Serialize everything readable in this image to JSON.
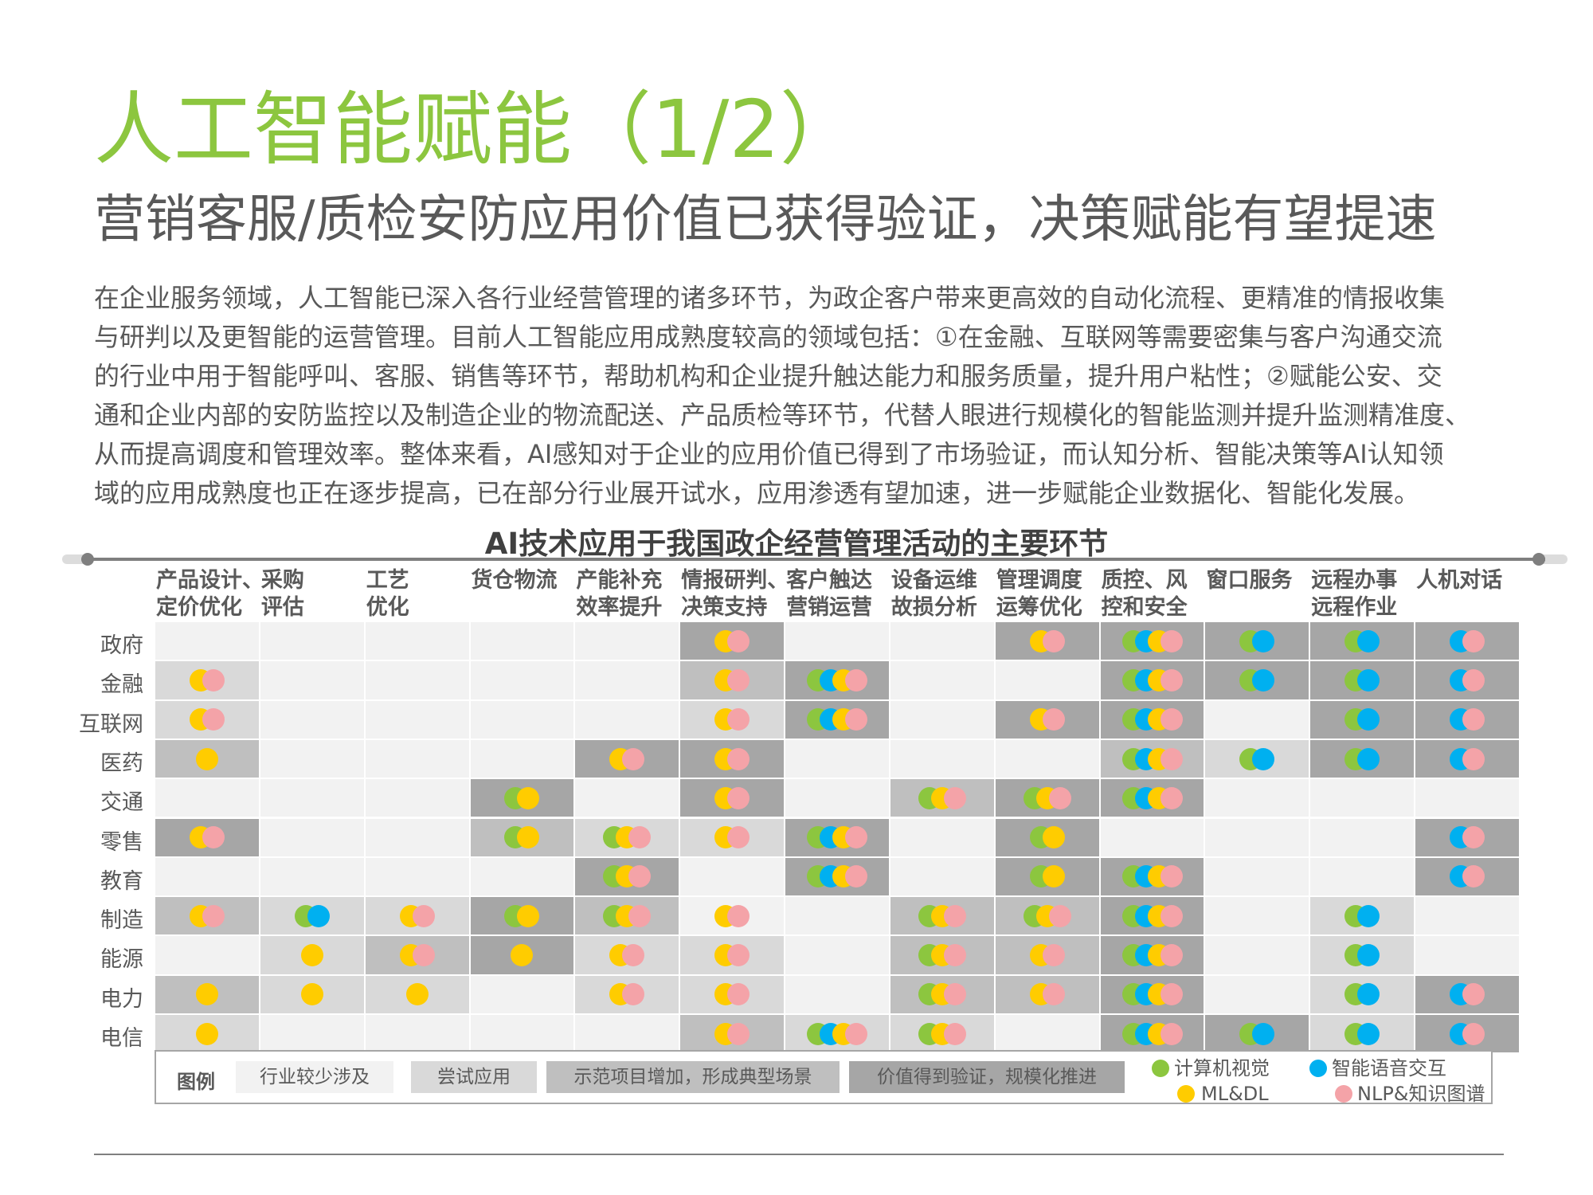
{
  "title": "人工智能赋能（1/2）",
  "subtitle": "营销客服/质检安防应用价值已获得验证，决策赋能有望提速",
  "body_lines": [
    "在企业服务领域，人工智能已深入各行业经营管理的诸多环节，为政企客户带来更高效的自动化流程、更精准的情报收集",
    "与研判以及更智能的运营管理。目前人工智能应用成熟度较高的领域包括：①在金融、互联网等需要密集与客户沟通交流",
    "的行业中用于智能呼叫、客服、销售等环节，帮助机构和企业提升触达能力和服务质量，提升用户粘性；②赋能公安、交",
    "通和企业内部的安防监控以及制造企业的物流配送、产品质检等环节，代替人眼进行规模化的智能监测并提升监测精准度、",
    "从而提高调度和管理效率。整体来看，AI感知对于企业的应用价值已得到了市场验证，而认知分析、智能决策等AI认知领",
    "域的应用成熟度也正在逐步提高，已在部分行业展开试水，应用渗透有望加速，进一步赋能企业数据化、智能化发展。"
  ],
  "chart_data": {
    "type": "table",
    "title": "AI技术应用于我国政企经营管理活动的主要环节",
    "columns": [
      [
        "产品设计、",
        "定价优化"
      ],
      [
        "采购",
        "评估"
      ],
      [
        "工艺",
        "优化"
      ],
      [
        "货仓物流"
      ],
      [
        "产能补充",
        "效率提升"
      ],
      [
        "情报研判、",
        "决策支持"
      ],
      [
        "客户触达",
        "营销运营"
      ],
      [
        "设备运维",
        "故损分析"
      ],
      [
        "管理调度",
        "运筹优化"
      ],
      [
        "质控、风",
        "控和安全"
      ],
      [
        "窗口服务"
      ],
      [
        "远程办事",
        "远程作业"
      ],
      [
        "人机对话"
      ]
    ],
    "rows": [
      "政府",
      "金融",
      "互联网",
      "医药",
      "交通",
      "零售",
      "教育",
      "制造",
      "能源",
      "电力",
      "电信"
    ],
    "level_colors": [
      "#f2f2f2",
      "#d9d9d9",
      "#bfbfbf",
      "#a6a6a6"
    ],
    "tech_colors": {
      "cv": "#8cc63f",
      "voice": "#00b0f0",
      "ml": "#ffcc00",
      "nlp": "#f4a3a8"
    },
    "cells": [
      [
        {
          "l": 0,
          "t": ""
        },
        {
          "l": 0,
          "t": ""
        },
        {
          "l": 0,
          "t": ""
        },
        {
          "l": 0,
          "t": ""
        },
        {
          "l": 0,
          "t": ""
        },
        {
          "l": 3,
          "t": "mn"
        },
        {
          "l": 0,
          "t": ""
        },
        {
          "l": 0,
          "t": ""
        },
        {
          "l": 3,
          "t": "mn"
        },
        {
          "l": 3,
          "t": "cvmn"
        },
        {
          "l": 3,
          "t": "cv"
        },
        {
          "l": 3,
          "t": "cv"
        },
        {
          "l": 3,
          "t": "vn"
        }
      ],
      [
        {
          "l": 1,
          "t": "mn"
        },
        {
          "l": 0,
          "t": ""
        },
        {
          "l": 0,
          "t": ""
        },
        {
          "l": 0,
          "t": ""
        },
        {
          "l": 0,
          "t": ""
        },
        {
          "l": 2,
          "t": "mn"
        },
        {
          "l": 3,
          "t": "cvmn"
        },
        {
          "l": 0,
          "t": ""
        },
        {
          "l": 0,
          "t": ""
        },
        {
          "l": 3,
          "t": "cvmn"
        },
        {
          "l": 3,
          "t": "cv"
        },
        {
          "l": 3,
          "t": "cv"
        },
        {
          "l": 3,
          "t": "vn"
        }
      ],
      [
        {
          "l": 1,
          "t": "mn"
        },
        {
          "l": 0,
          "t": ""
        },
        {
          "l": 0,
          "t": ""
        },
        {
          "l": 0,
          "t": ""
        },
        {
          "l": 0,
          "t": ""
        },
        {
          "l": 1,
          "t": "mn"
        },
        {
          "l": 3,
          "t": "cvmn"
        },
        {
          "l": 0,
          "t": ""
        },
        {
          "l": 3,
          "t": "mn"
        },
        {
          "l": 3,
          "t": "cvmn"
        },
        {
          "l": 0,
          "t": ""
        },
        {
          "l": 3,
          "t": "cv"
        },
        {
          "l": 3,
          "t": "vn"
        }
      ],
      [
        {
          "l": 2,
          "t": "m"
        },
        {
          "l": 0,
          "t": ""
        },
        {
          "l": 0,
          "t": ""
        },
        {
          "l": 0,
          "t": ""
        },
        {
          "l": 3,
          "t": "mn"
        },
        {
          "l": 3,
          "t": "mn"
        },
        {
          "l": 0,
          "t": ""
        },
        {
          "l": 0,
          "t": ""
        },
        {
          "l": 0,
          "t": ""
        },
        {
          "l": 2,
          "t": "cvmn"
        },
        {
          "l": 1,
          "t": "cv"
        },
        {
          "l": 3,
          "t": "cv"
        },
        {
          "l": 3,
          "t": "vn"
        }
      ],
      [
        {
          "l": 0,
          "t": ""
        },
        {
          "l": 0,
          "t": ""
        },
        {
          "l": 0,
          "t": ""
        },
        {
          "l": 3,
          "t": "cm"
        },
        {
          "l": 0,
          "t": ""
        },
        {
          "l": 3,
          "t": "mn"
        },
        {
          "l": 0,
          "t": ""
        },
        {
          "l": 2,
          "t": "cmn"
        },
        {
          "l": 3,
          "t": "cmn"
        },
        {
          "l": 3,
          "t": "cvmn"
        },
        {
          "l": 0,
          "t": ""
        },
        {
          "l": 0,
          "t": ""
        },
        {
          "l": 0,
          "t": ""
        }
      ],
      [
        {
          "l": 3,
          "t": "mn"
        },
        {
          "l": 0,
          "t": ""
        },
        {
          "l": 0,
          "t": ""
        },
        {
          "l": 2,
          "t": "cm"
        },
        {
          "l": 1,
          "t": "cmn"
        },
        {
          "l": 1,
          "t": "mn"
        },
        {
          "l": 3,
          "t": "cvmn"
        },
        {
          "l": 0,
          "t": ""
        },
        {
          "l": 3,
          "t": "cm"
        },
        {
          "l": 0,
          "t": ""
        },
        {
          "l": 0,
          "t": ""
        },
        {
          "l": 0,
          "t": ""
        },
        {
          "l": 3,
          "t": "vn"
        }
      ],
      [
        {
          "l": 0,
          "t": ""
        },
        {
          "l": 0,
          "t": ""
        },
        {
          "l": 0,
          "t": ""
        },
        {
          "l": 0,
          "t": ""
        },
        {
          "l": 3,
          "t": "cmn"
        },
        {
          "l": 0,
          "t": ""
        },
        {
          "l": 3,
          "t": "cvmn"
        },
        {
          "l": 0,
          "t": ""
        },
        {
          "l": 3,
          "t": "cm"
        },
        {
          "l": 3,
          "t": "cvmn"
        },
        {
          "l": 0,
          "t": ""
        },
        {
          "l": 0,
          "t": ""
        },
        {
          "l": 3,
          "t": "vn"
        }
      ],
      [
        {
          "l": 2,
          "t": "mn"
        },
        {
          "l": 1,
          "t": "cv"
        },
        {
          "l": 1,
          "t": "mn"
        },
        {
          "l": 3,
          "t": "cm"
        },
        {
          "l": 2,
          "t": "cmn"
        },
        {
          "l": 0,
          "t": "mn"
        },
        {
          "l": 0,
          "t": ""
        },
        {
          "l": 2,
          "t": "cmn"
        },
        {
          "l": 2,
          "t": "cmn"
        },
        {
          "l": 3,
          "t": "cvmn"
        },
        {
          "l": 0,
          "t": ""
        },
        {
          "l": 1,
          "t": "cv"
        },
        {
          "l": 0,
          "t": ""
        }
      ],
      [
        {
          "l": 0,
          "t": ""
        },
        {
          "l": 1,
          "t": "m"
        },
        {
          "l": 2,
          "t": "mn"
        },
        {
          "l": 3,
          "t": "m"
        },
        {
          "l": 1,
          "t": "mn"
        },
        {
          "l": 1,
          "t": "mn"
        },
        {
          "l": 0,
          "t": ""
        },
        {
          "l": 2,
          "t": "cmn"
        },
        {
          "l": 2,
          "t": "mn"
        },
        {
          "l": 3,
          "t": "cvmn"
        },
        {
          "l": 0,
          "t": ""
        },
        {
          "l": 1,
          "t": "cv"
        },
        {
          "l": 0,
          "t": ""
        }
      ],
      [
        {
          "l": 2,
          "t": "m"
        },
        {
          "l": 1,
          "t": "m"
        },
        {
          "l": 1,
          "t": "m"
        },
        {
          "l": 0,
          "t": ""
        },
        {
          "l": 1,
          "t": "mn"
        },
        {
          "l": 1,
          "t": "mn"
        },
        {
          "l": 0,
          "t": ""
        },
        {
          "l": 2,
          "t": "cmn"
        },
        {
          "l": 2,
          "t": "mn"
        },
        {
          "l": 3,
          "t": "cvmn"
        },
        {
          "l": 0,
          "t": ""
        },
        {
          "l": 1,
          "t": "cv"
        },
        {
          "l": 3,
          "t": "vn"
        }
      ],
      [
        {
          "l": 1,
          "t": "m"
        },
        {
          "l": 0,
          "t": ""
        },
        {
          "l": 0,
          "t": ""
        },
        {
          "l": 0,
          "t": ""
        },
        {
          "l": 0,
          "t": ""
        },
        {
          "l": 2,
          "t": "mn"
        },
        {
          "l": 1,
          "t": "cvmn"
        },
        {
          "l": 1,
          "t": "cmn"
        },
        {
          "l": 0,
          "t": ""
        },
        {
          "l": 3,
          "t": "cvmn"
        },
        {
          "l": 3,
          "t": "cv"
        },
        {
          "l": 1,
          "t": "cv"
        },
        {
          "l": 3,
          "t": "vn"
        }
      ]
    ]
  },
  "legend": {
    "title": "图例",
    "levels": [
      "行业较少涉及",
      "尝试应用",
      "示范项目增加，形成典型场景",
      "价值得到验证，规模化推进"
    ],
    "techs": [
      {
        "key": "cv",
        "label": "计算机视觉"
      },
      {
        "key": "voice",
        "label": "智能语音交互"
      },
      {
        "key": "ml",
        "label": "ML&DL"
      },
      {
        "key": "nlp",
        "label": "NLP&知识图谱"
      }
    ]
  }
}
